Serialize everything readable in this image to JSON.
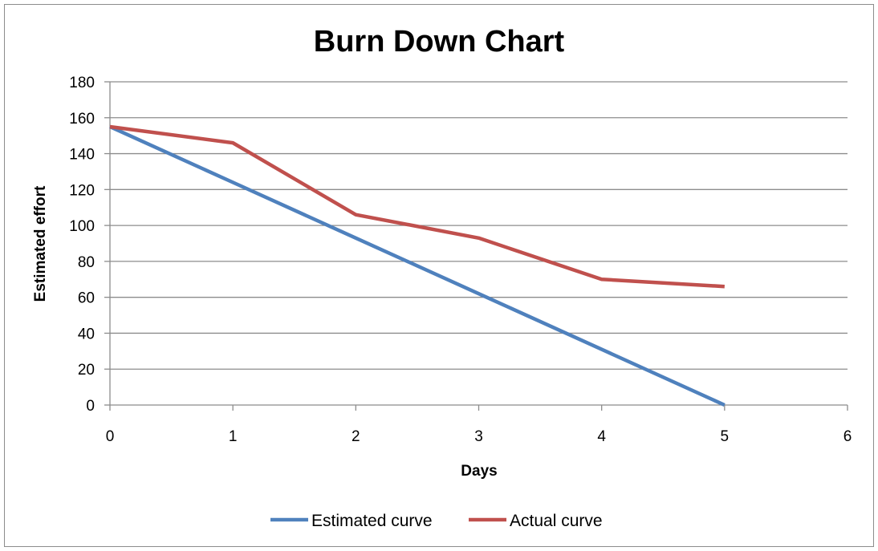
{
  "chart_data": {
    "type": "line",
    "title": "Burn Down Chart",
    "xlabel": "Days",
    "ylabel": "Estimated effort",
    "xlim": [
      0,
      6
    ],
    "ylim": [
      0,
      180
    ],
    "x_ticks": [
      0,
      1,
      2,
      3,
      4,
      5,
      6
    ],
    "y_ticks": [
      0,
      20,
      40,
      60,
      80,
      100,
      120,
      140,
      160,
      180
    ],
    "grid": true,
    "legend_position": "bottom",
    "series": [
      {
        "name": "Estimated curve",
        "color": "#4F81BD",
        "x": [
          0,
          1,
          2,
          3,
          4,
          5
        ],
        "y": [
          155,
          124,
          93,
          62,
          31,
          0
        ]
      },
      {
        "name": "Actual curve",
        "color": "#C0504D",
        "x": [
          0,
          1,
          2,
          3,
          4,
          5
        ],
        "y": [
          155,
          146,
          106,
          93,
          70,
          66
        ]
      }
    ]
  }
}
